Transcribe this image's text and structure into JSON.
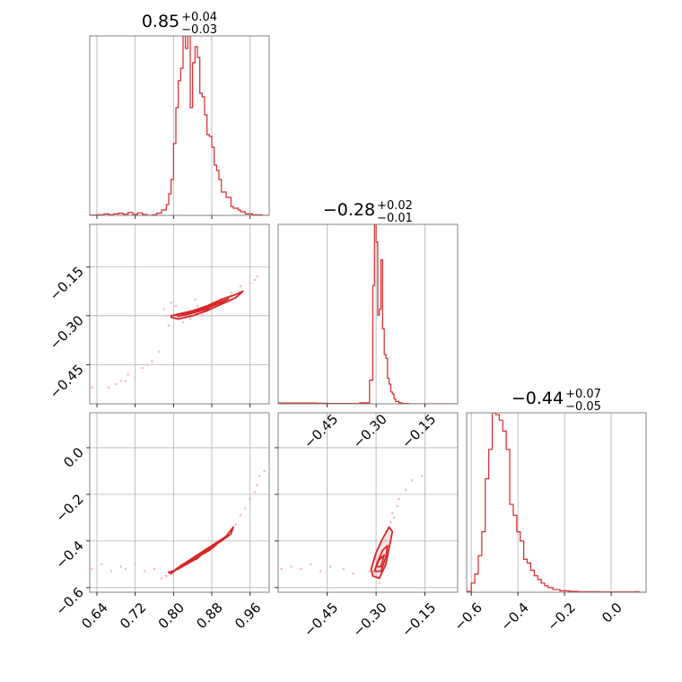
{
  "colors": {
    "series": "#d62728",
    "grid": "#b0b0b0",
    "frame": "#808080",
    "scatter": "#f4b6b6"
  },
  "chart_data": [
    {
      "type": "histogram",
      "panel": "1-1",
      "title_value": "0.85",
      "title_plus": "+0.04",
      "title_minus": "−0.03",
      "xlim": [
        0.625,
        1.0
      ],
      "grid_x": [
        0.64,
        0.72,
        0.8,
        0.88,
        0.96
      ],
      "bins": [
        [
          0.625,
          0.002
        ],
        [
          0.64,
          0.003
        ],
        [
          0.655,
          0.008
        ],
        [
          0.665,
          0.003
        ],
        [
          0.675,
          0.008
        ],
        [
          0.685,
          0.012
        ],
        [
          0.695,
          0.006
        ],
        [
          0.705,
          0.016
        ],
        [
          0.715,
          0.006
        ],
        [
          0.725,
          0.014
        ],
        [
          0.735,
          0.005
        ],
        [
          0.745,
          0.0
        ],
        [
          0.755,
          0.003
        ],
        [
          0.765,
          0.012
        ],
        [
          0.775,
          0.03
        ],
        [
          0.785,
          0.06
        ],
        [
          0.79,
          0.12
        ],
        [
          0.795,
          0.2
        ],
        [
          0.8,
          0.4
        ],
        [
          0.805,
          0.6
        ],
        [
          0.81,
          0.75
        ],
        [
          0.815,
          0.82
        ],
        [
          0.82,
          1.0
        ],
        [
          0.825,
          0.93
        ],
        [
          0.83,
          1.0
        ],
        [
          0.835,
          0.6
        ],
        [
          0.84,
          0.85
        ],
        [
          0.845,
          0.94
        ],
        [
          0.85,
          0.88
        ],
        [
          0.855,
          0.68
        ],
        [
          0.86,
          0.66
        ],
        [
          0.865,
          0.56
        ],
        [
          0.87,
          0.45
        ],
        [
          0.875,
          0.44
        ],
        [
          0.88,
          0.38
        ],
        [
          0.885,
          0.28
        ],
        [
          0.89,
          0.25
        ],
        [
          0.895,
          0.2
        ],
        [
          0.9,
          0.13
        ],
        [
          0.905,
          0.13
        ],
        [
          0.91,
          0.1
        ],
        [
          0.915,
          0.1
        ],
        [
          0.92,
          0.05
        ],
        [
          0.925,
          0.04
        ],
        [
          0.93,
          0.04
        ],
        [
          0.935,
          0.03
        ],
        [
          0.94,
          0.02
        ],
        [
          0.95,
          0.008
        ],
        [
          0.965,
          0.003
        ],
        [
          0.985,
          0.0
        ]
      ]
    },
    {
      "type": "histogram",
      "panel": "2-2",
      "title_value": "−0.28",
      "title_plus": "+0.02",
      "title_minus": "−0.01",
      "xlim": [
        -0.6,
        -0.05
      ],
      "grid_x": [
        -0.45,
        -0.3,
        -0.15
      ],
      "ticks_x": [
        "−0.45",
        "−0.30",
        "−0.15"
      ],
      "bins": [
        [
          -0.6,
          0.004
        ],
        [
          -0.48,
          0.003
        ],
        [
          -0.45,
          0.002
        ],
        [
          -0.35,
          0.005
        ],
        [
          -0.32,
          0.12
        ],
        [
          -0.31,
          0.6
        ],
        [
          -0.305,
          0.91
        ],
        [
          -0.3,
          0.82
        ],
        [
          -0.295,
          0.45
        ],
        [
          -0.29,
          0.48
        ],
        [
          -0.285,
          0.73
        ],
        [
          -0.28,
          0.38
        ],
        [
          -0.275,
          0.25
        ],
        [
          -0.27,
          0.23
        ],
        [
          -0.265,
          0.13
        ],
        [
          -0.26,
          0.1
        ],
        [
          -0.255,
          0.06
        ],
        [
          -0.25,
          0.05
        ],
        [
          -0.245,
          0.025
        ],
        [
          -0.24,
          0.012
        ],
        [
          -0.23,
          0.005
        ],
        [
          -0.22,
          0.002
        ],
        [
          -0.2,
          0.0
        ]
      ]
    },
    {
      "type": "histogram",
      "panel": "3-3",
      "title_value": "−0.44",
      "title_plus": "+0.07",
      "title_minus": "−0.05",
      "xlim": [
        -0.62,
        0.15
      ],
      "grid_x": [
        -0.6,
        -0.4,
        -0.2,
        0.0
      ],
      "ticks_x": [
        "−0.6",
        "−0.4",
        "−0.2",
        "0.0"
      ],
      "bins": [
        [
          -0.62,
          0.005
        ],
        [
          -0.6,
          0.05
        ],
        [
          -0.585,
          0.1
        ],
        [
          -0.57,
          0.2
        ],
        [
          -0.555,
          0.33
        ],
        [
          -0.54,
          0.62
        ],
        [
          -0.525,
          0.78
        ],
        [
          -0.51,
          0.98
        ],
        [
          -0.495,
          0.97
        ],
        [
          -0.48,
          0.94
        ],
        [
          -0.465,
          0.88
        ],
        [
          -0.45,
          0.78
        ],
        [
          -0.435,
          0.48
        ],
        [
          -0.42,
          0.42
        ],
        [
          -0.405,
          0.33
        ],
        [
          -0.39,
          0.28
        ],
        [
          -0.375,
          0.18
        ],
        [
          -0.36,
          0.16
        ],
        [
          -0.345,
          0.12
        ],
        [
          -0.33,
          0.09
        ],
        [
          -0.315,
          0.07
        ],
        [
          -0.3,
          0.05
        ],
        [
          -0.285,
          0.035
        ],
        [
          -0.27,
          0.025
        ],
        [
          -0.25,
          0.015
        ],
        [
          -0.22,
          0.008
        ],
        [
          -0.18,
          0.005
        ],
        [
          -0.14,
          0.003
        ],
        [
          -0.05,
          0.002
        ],
        [
          0.1,
          0.003
        ],
        [
          0.12,
          0.0
        ]
      ]
    },
    {
      "type": "scatter",
      "panel": "2-1",
      "xlim": [
        0.625,
        1.0
      ],
      "ylim": [
        -0.57,
        -0.02
      ],
      "grid_x": [
        0.64,
        0.72,
        0.8,
        0.88,
        0.96
      ],
      "grid_y": [
        -0.45,
        -0.3,
        -0.15
      ],
      "ticks_y": [
        "−0.45",
        "−0.30",
        "−0.15"
      ],
      "points": [
        [
          0.63,
          -0.52
        ],
        [
          0.665,
          -0.52
        ],
        [
          0.68,
          -0.51
        ],
        [
          0.69,
          -0.5
        ],
        [
          0.7,
          -0.5
        ],
        [
          0.705,
          -0.48
        ],
        [
          0.72,
          -0.49
        ],
        [
          0.735,
          -0.46
        ],
        [
          0.745,
          -0.45
        ],
        [
          0.755,
          -0.44
        ],
        [
          0.77,
          -0.41
        ],
        [
          0.79,
          -0.33
        ],
        [
          0.785,
          -0.3
        ],
        [
          0.78,
          -0.28
        ],
        [
          0.795,
          -0.26
        ],
        [
          0.81,
          -0.3
        ],
        [
          0.82,
          -0.32
        ],
        [
          0.83,
          -0.29
        ],
        [
          0.85,
          -0.27
        ],
        [
          0.86,
          -0.3
        ],
        [
          0.88,
          -0.26
        ],
        [
          0.9,
          -0.25
        ],
        [
          0.92,
          -0.23
        ],
        [
          0.94,
          -0.21
        ],
        [
          0.96,
          -0.2
        ],
        [
          0.97,
          -0.19
        ],
        [
          0.975,
          -0.18
        ],
        [
          0.835,
          -0.31
        ],
        [
          0.845,
          -0.25
        ],
        [
          0.805,
          -0.27
        ]
      ],
      "contours": [
        [
          [
            0.795,
            -0.3
          ],
          [
            0.81,
            -0.295
          ],
          [
            0.84,
            -0.285
          ],
          [
            0.87,
            -0.27
          ],
          [
            0.9,
            -0.25
          ],
          [
            0.93,
            -0.235
          ],
          [
            0.945,
            -0.225
          ],
          [
            0.93,
            -0.245
          ],
          [
            0.9,
            -0.265
          ],
          [
            0.87,
            -0.285
          ],
          [
            0.84,
            -0.3
          ],
          [
            0.81,
            -0.31
          ],
          [
            0.795,
            -0.305
          ]
        ],
        [
          [
            0.805,
            -0.297
          ],
          [
            0.83,
            -0.29
          ],
          [
            0.86,
            -0.278
          ],
          [
            0.89,
            -0.262
          ],
          [
            0.915,
            -0.248
          ],
          [
            0.9,
            -0.26
          ],
          [
            0.87,
            -0.277
          ],
          [
            0.84,
            -0.292
          ],
          [
            0.81,
            -0.302
          ]
        ],
        [
          [
            0.815,
            -0.294
          ],
          [
            0.84,
            -0.288
          ],
          [
            0.87,
            -0.275
          ],
          [
            0.885,
            -0.266
          ],
          [
            0.87,
            -0.28
          ],
          [
            0.84,
            -0.292
          ],
          [
            0.82,
            -0.298
          ]
        ]
      ]
    },
    {
      "type": "scatter",
      "panel": "3-1",
      "xlim": [
        0.625,
        1.0
      ],
      "ylim": [
        -0.62,
        0.15
      ],
      "grid_x": [
        0.64,
        0.72,
        0.8,
        0.88,
        0.96
      ],
      "grid_y": [
        -0.6,
        -0.4,
        -0.2,
        0.0
      ],
      "ticks_x": [
        "0.64",
        "0.72",
        "0.80",
        "0.88",
        "0.96"
      ],
      "ticks_y": [
        "−0.6",
        "−0.4",
        "−0.2",
        "0.0"
      ],
      "points": [
        [
          0.63,
          -0.52
        ],
        [
          0.65,
          -0.5
        ],
        [
          0.67,
          -0.53
        ],
        [
          0.69,
          -0.51
        ],
        [
          0.7,
          -0.52
        ],
        [
          0.72,
          -0.5
        ],
        [
          0.74,
          -0.53
        ],
        [
          0.76,
          -0.52
        ],
        [
          0.775,
          -0.56
        ],
        [
          0.785,
          -0.55
        ],
        [
          0.79,
          -0.53
        ],
        [
          0.93,
          -0.33
        ],
        [
          0.94,
          -0.29
        ],
        [
          0.95,
          -0.26
        ],
        [
          0.96,
          -0.22
        ],
        [
          0.97,
          -0.19
        ],
        [
          0.975,
          -0.16
        ],
        [
          0.98,
          -0.12
        ],
        [
          0.99,
          -0.1
        ]
      ],
      "contours": [
        [
          [
            0.79,
            -0.535
          ],
          [
            0.81,
            -0.52
          ],
          [
            0.84,
            -0.485
          ],
          [
            0.87,
            -0.44
          ],
          [
            0.9,
            -0.4
          ],
          [
            0.92,
            -0.37
          ],
          [
            0.925,
            -0.34
          ],
          [
            0.91,
            -0.38
          ],
          [
            0.88,
            -0.42
          ],
          [
            0.85,
            -0.46
          ],
          [
            0.82,
            -0.5
          ],
          [
            0.795,
            -0.54
          ]
        ],
        [
          [
            0.805,
            -0.52
          ],
          [
            0.83,
            -0.49
          ],
          [
            0.86,
            -0.455
          ],
          [
            0.89,
            -0.415
          ],
          [
            0.875,
            -0.44
          ],
          [
            0.845,
            -0.475
          ],
          [
            0.815,
            -0.51
          ]
        ],
        [
          [
            0.815,
            -0.505
          ],
          [
            0.84,
            -0.48
          ],
          [
            0.86,
            -0.455
          ],
          [
            0.85,
            -0.475
          ],
          [
            0.825,
            -0.5
          ]
        ]
      ]
    },
    {
      "type": "scatter",
      "panel": "3-2",
      "xlim": [
        -0.6,
        -0.05
      ],
      "ylim": [
        -0.62,
        0.15
      ],
      "grid_x": [
        -0.45,
        -0.3,
        -0.15
      ],
      "grid_y": [
        -0.6,
        -0.4,
        -0.2,
        0.0
      ],
      "ticks_x": [
        "−0.45",
        "−0.30",
        "−0.15"
      ],
      "points": [
        [
          -0.59,
          -0.52
        ],
        [
          -0.56,
          -0.51
        ],
        [
          -0.53,
          -0.52
        ],
        [
          -0.5,
          -0.5
        ],
        [
          -0.47,
          -0.53
        ],
        [
          -0.44,
          -0.51
        ],
        [
          -0.4,
          -0.52
        ],
        [
          -0.37,
          -0.54
        ],
        [
          -0.32,
          -0.53
        ],
        [
          -0.29,
          -0.58
        ],
        [
          -0.27,
          -0.36
        ],
        [
          -0.25,
          -0.28
        ],
        [
          -0.23,
          -0.22
        ],
        [
          -0.21,
          -0.18
        ],
        [
          -0.19,
          -0.14
        ],
        [
          -0.16,
          -0.12
        ],
        [
          -0.255,
          -0.32
        ],
        [
          -0.235,
          -0.25
        ],
        [
          -0.245,
          -0.3
        ]
      ],
      "contours": [
        [
          [
            -0.31,
            -0.55
          ],
          [
            -0.29,
            -0.56
          ],
          [
            -0.27,
            -0.5
          ],
          [
            -0.26,
            -0.43
          ],
          [
            -0.25,
            -0.36
          ],
          [
            -0.26,
            -0.34
          ],
          [
            -0.28,
            -0.39
          ],
          [
            -0.3,
            -0.45
          ],
          [
            -0.315,
            -0.52
          ]
        ],
        [
          [
            -0.305,
            -0.53
          ],
          [
            -0.285,
            -0.53
          ],
          [
            -0.27,
            -0.47
          ],
          [
            -0.265,
            -0.42
          ],
          [
            -0.28,
            -0.44
          ],
          [
            -0.295,
            -0.49
          ]
        ],
        [
          [
            -0.3,
            -0.51
          ],
          [
            -0.285,
            -0.51
          ],
          [
            -0.275,
            -0.46
          ],
          [
            -0.29,
            -0.48
          ]
        ]
      ]
    }
  ]
}
